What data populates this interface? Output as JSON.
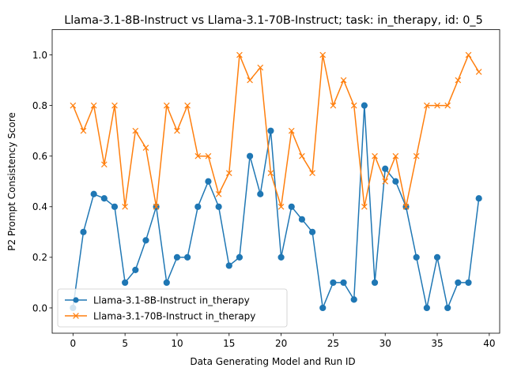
{
  "chart_data": {
    "type": "line",
    "title": "Llama-3.1-8B-Instruct vs Llama-3.1-70B-Instruct; task: in_therapy, id: 0_5",
    "xlabel": "Data Generating Model and Run ID",
    "ylabel": "P2 Prompt Consistency Score",
    "xlim": [
      -2,
      41
    ],
    "ylim": [
      -0.1,
      1.1
    ],
    "xticks": [
      0,
      5,
      10,
      15,
      20,
      25,
      30,
      35,
      40
    ],
    "yticks": [
      0.0,
      0.2,
      0.4,
      0.6,
      0.8,
      1.0
    ],
    "ytick_labels": [
      "0.0",
      "0.2",
      "0.4",
      "0.6",
      "0.8",
      "1.0"
    ],
    "grid": false,
    "legend": "lower-left",
    "x": [
      0,
      1,
      2,
      3,
      4,
      5,
      6,
      7,
      8,
      9,
      10,
      11,
      12,
      13,
      14,
      15,
      16,
      17,
      18,
      19,
      20,
      21,
      22,
      23,
      24,
      25,
      26,
      27,
      28,
      29,
      30,
      31,
      32,
      33,
      34,
      35,
      36,
      37,
      38,
      39
    ],
    "series": [
      {
        "name": "Llama-3.1-8B-Instruct in_therapy",
        "color": "#1f77b4",
        "marker": "circle",
        "values": [
          0.0,
          0.3,
          0.45,
          0.433,
          0.4,
          0.1,
          0.15,
          0.267,
          0.4,
          0.1,
          0.2,
          0.2,
          0.4,
          0.5,
          0.4,
          0.167,
          0.2,
          0.6,
          0.45,
          0.7,
          0.2,
          0.4,
          0.35,
          0.3,
          0.0,
          0.1,
          0.1,
          0.033,
          0.8,
          0.1,
          0.55,
          0.5,
          0.4,
          0.2,
          0.0,
          0.2,
          0.0,
          0.1,
          0.1,
          0.433
        ]
      },
      {
        "name": "Llama-3.1-70B-Instruct in_therapy",
        "color": "#ff7f0e",
        "marker": "x",
        "values": [
          0.8,
          0.7,
          0.8,
          0.567,
          0.8,
          0.4,
          0.7,
          0.633,
          0.4,
          0.8,
          0.7,
          0.8,
          0.6,
          0.6,
          0.45,
          0.533,
          1.0,
          0.9,
          0.95,
          0.533,
          0.4,
          0.7,
          0.6,
          0.533,
          1.0,
          0.8,
          0.9,
          0.8,
          0.4,
          0.6,
          0.5,
          0.6,
          0.4,
          0.6,
          0.8,
          0.8,
          0.8,
          0.9,
          1.0,
          0.933
        ]
      }
    ]
  }
}
